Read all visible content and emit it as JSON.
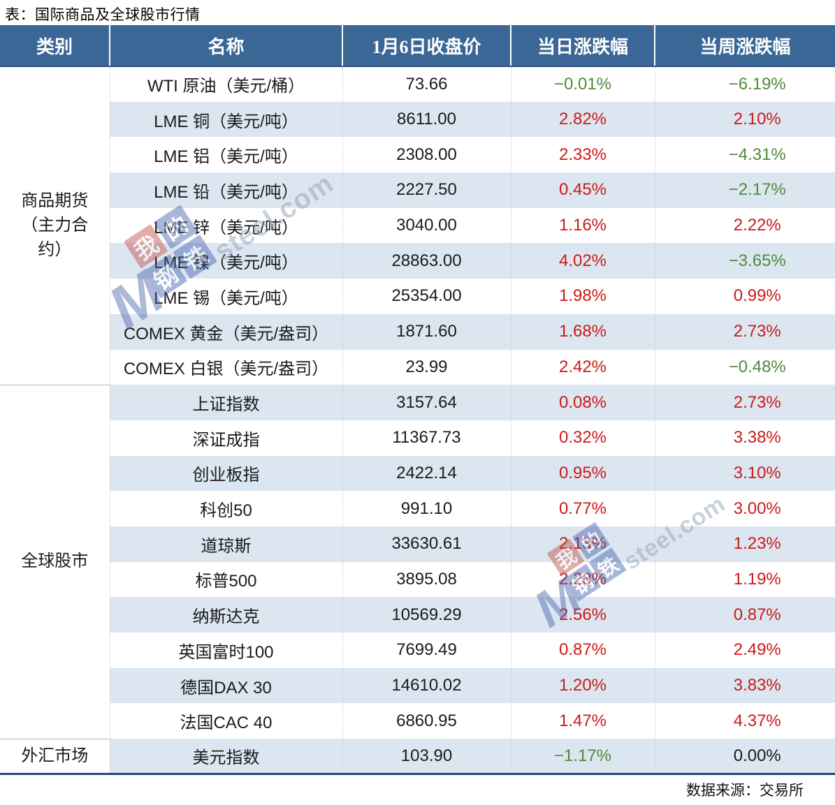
{
  "page": {
    "title": "表：国际商品及全球股市行情"
  },
  "footer": {
    "source": "数据来源：交易所"
  },
  "watermark": {
    "brand": "Mysteel.com",
    "m": "M",
    "suffix": "steel.com",
    "tiles": [
      "我",
      "的",
      "钢",
      "铁"
    ]
  },
  "colors": {
    "header_bg": "#3b6796",
    "stripe_bg": "#dce6f1",
    "up_red": "#cc1a16",
    "down_green": "#4f8a3b",
    "flat_black": "#1a1a1a",
    "bottom_border": "#23477b"
  },
  "chart_data": {
    "type": "table",
    "title": "表：国际商品及全球股市行情",
    "columns": [
      "类别",
      "名称",
      "1月6日收盘价",
      "当日涨跌幅",
      "当周涨跌幅"
    ],
    "color_legend": {
      "up": "red #cc1a16",
      "down": "green #4f8a3b",
      "flat": "black"
    },
    "groups": [
      {
        "category": "商品期货（主力合约）",
        "rows": [
          {
            "name": "WTI 原油（美元/桶）",
            "close": "73.66",
            "daily": "−0.01%",
            "daily_dir": "down",
            "weekly": "−6.19%",
            "weekly_dir": "down"
          },
          {
            "name": "LME 铜（美元/吨）",
            "close": "8611.00",
            "daily": "2.82%",
            "daily_dir": "up",
            "weekly": "2.10%",
            "weekly_dir": "up"
          },
          {
            "name": "LME 铝（美元/吨）",
            "close": "2308.00",
            "daily": "2.33%",
            "daily_dir": "up",
            "weekly": "−4.31%",
            "weekly_dir": "down"
          },
          {
            "name": "LME 铅（美元/吨）",
            "close": "2227.50",
            "daily": "0.45%",
            "daily_dir": "up",
            "weekly": "−2.17%",
            "weekly_dir": "down"
          },
          {
            "name": "LME 锌（美元/吨）",
            "close": "3040.00",
            "daily": "1.16%",
            "daily_dir": "up",
            "weekly": "2.22%",
            "weekly_dir": "up"
          },
          {
            "name": "LME 镍（美元/吨）",
            "close": "28863.00",
            "daily": "4.02%",
            "daily_dir": "up",
            "weekly": "−3.65%",
            "weekly_dir": "down"
          },
          {
            "name": "LME 锡（美元/吨）",
            "close": "25354.00",
            "daily": "1.98%",
            "daily_dir": "up",
            "weekly": "0.99%",
            "weekly_dir": "up"
          },
          {
            "name": "COMEX 黄金（美元/盎司）",
            "close": "1871.60",
            "daily": "1.68%",
            "daily_dir": "up",
            "weekly": "2.73%",
            "weekly_dir": "up"
          },
          {
            "name": "COMEX 白银（美元/盎司）",
            "close": "23.99",
            "daily": "2.42%",
            "daily_dir": "up",
            "weekly": "−0.48%",
            "weekly_dir": "down"
          }
        ]
      },
      {
        "category": "全球股市",
        "rows": [
          {
            "name": "上证指数",
            "close": "3157.64",
            "daily": "0.08%",
            "daily_dir": "up",
            "weekly": "2.73%",
            "weekly_dir": "up"
          },
          {
            "name": "深证成指",
            "close": "11367.73",
            "daily": "0.32%",
            "daily_dir": "up",
            "weekly": "3.38%",
            "weekly_dir": "up"
          },
          {
            "name": "创业板指",
            "close": "2422.14",
            "daily": "0.95%",
            "daily_dir": "up",
            "weekly": "3.10%",
            "weekly_dir": "up"
          },
          {
            "name": "科创50",
            "close": "991.10",
            "daily": "0.77%",
            "daily_dir": "up",
            "weekly": "3.00%",
            "weekly_dir": "up"
          },
          {
            "name": "道琼斯",
            "close": "33630.61",
            "daily": "2.13%",
            "daily_dir": "up",
            "weekly": "1.23%",
            "weekly_dir": "up"
          },
          {
            "name": "标普500",
            "close": "3895.08",
            "daily": "2.28%",
            "daily_dir": "up",
            "weekly": "1.19%",
            "weekly_dir": "up"
          },
          {
            "name": "纳斯达克",
            "close": "10569.29",
            "daily": "2.56%",
            "daily_dir": "up",
            "weekly": "0.87%",
            "weekly_dir": "up"
          },
          {
            "name": "英国富时100",
            "close": "7699.49",
            "daily": "0.87%",
            "daily_dir": "up",
            "weekly": "2.49%",
            "weekly_dir": "up"
          },
          {
            "name": "德国DAX 30",
            "close": "14610.02",
            "daily": "1.20%",
            "daily_dir": "up",
            "weekly": "3.83%",
            "weekly_dir": "up"
          },
          {
            "name": "法国CAC 40",
            "close": "6860.95",
            "daily": "1.47%",
            "daily_dir": "up",
            "weekly": "4.37%",
            "weekly_dir": "up"
          }
        ]
      },
      {
        "category": "外汇市场",
        "rows": [
          {
            "name": "美元指数",
            "close": "103.90",
            "daily": "−1.17%",
            "daily_dir": "down",
            "weekly": "0.00%",
            "weekly_dir": "flat"
          }
        ]
      }
    ]
  }
}
